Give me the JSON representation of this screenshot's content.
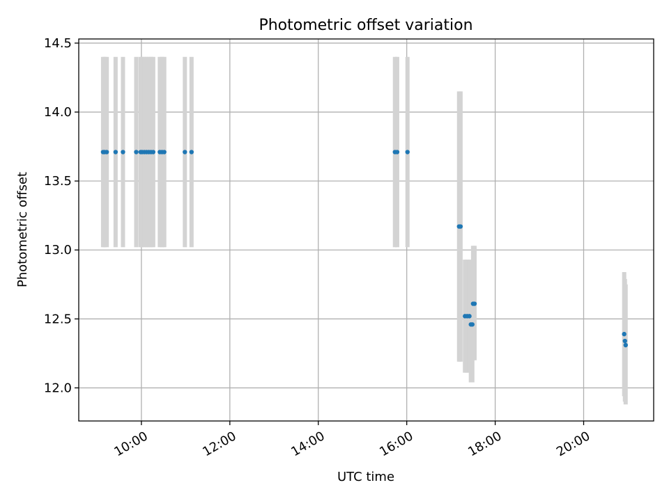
{
  "chart_data": {
    "type": "scatter",
    "title": "Photometric offset variation",
    "xlabel": "UTC time",
    "ylabel": "Photometric offset",
    "xlim": [
      "08:35",
      "21:35"
    ],
    "ylim": [
      11.76,
      14.53
    ],
    "x_ticks": [
      "10:00",
      "12:00",
      "14:00",
      "16:00",
      "18:00",
      "20:00"
    ],
    "y_ticks": [
      "12.0",
      "12.5",
      "13.0",
      "13.5",
      "14.0",
      "14.5"
    ],
    "grid": true,
    "colors": {
      "point": "#1f77b4",
      "errorbar": "#d3d3d3",
      "grid": "#b0b0b0"
    },
    "series": [
      {
        "points": [
          {
            "x": "09:08",
            "y": 13.71,
            "ylo": 13.02,
            "yhi": 14.4
          },
          {
            "x": "09:10",
            "y": 13.71,
            "ylo": 13.02,
            "yhi": 14.4
          },
          {
            "x": "09:13",
            "y": 13.71,
            "ylo": 13.02,
            "yhi": 14.4
          },
          {
            "x": "09:25",
            "y": 13.71,
            "ylo": 13.02,
            "yhi": 14.4
          },
          {
            "x": "09:35",
            "y": 13.71,
            "ylo": 13.02,
            "yhi": 14.4
          },
          {
            "x": "09:53",
            "y": 13.71,
            "ylo": 13.02,
            "yhi": 14.4
          },
          {
            "x": "09:59",
            "y": 13.71,
            "ylo": 13.02,
            "yhi": 14.4
          },
          {
            "x": "10:01",
            "y": 13.71,
            "ylo": 13.02,
            "yhi": 14.4
          },
          {
            "x": "10:04",
            "y": 13.71,
            "ylo": 13.02,
            "yhi": 14.4
          },
          {
            "x": "10:07",
            "y": 13.71,
            "ylo": 13.02,
            "yhi": 14.4
          },
          {
            "x": "10:10",
            "y": 13.71,
            "ylo": 13.02,
            "yhi": 14.4
          },
          {
            "x": "10:13",
            "y": 13.71,
            "ylo": 13.02,
            "yhi": 14.4
          },
          {
            "x": "10:16",
            "y": 13.71,
            "ylo": 13.02,
            "yhi": 14.4
          },
          {
            "x": "10:25",
            "y": 13.71,
            "ylo": 13.02,
            "yhi": 14.4
          },
          {
            "x": "10:28",
            "y": 13.71,
            "ylo": 13.02,
            "yhi": 14.4
          },
          {
            "x": "10:31",
            "y": 13.71,
            "ylo": 13.02,
            "yhi": 14.4
          },
          {
            "x": "10:59",
            "y": 13.71,
            "ylo": 13.02,
            "yhi": 14.4
          },
          {
            "x": "11:08",
            "y": 13.71,
            "ylo": 13.02,
            "yhi": 14.4
          },
          {
            "x": "15:44",
            "y": 13.71,
            "ylo": 13.02,
            "yhi": 14.4
          },
          {
            "x": "15:47",
            "y": 13.71,
            "ylo": 13.02,
            "yhi": 14.4
          },
          {
            "x": "16:01",
            "y": 13.71,
            "ylo": 13.02,
            "yhi": 14.4
          },
          {
            "x": "17:11",
            "y": 13.17,
            "ylo": 12.19,
            "yhi": 14.15
          },
          {
            "x": "17:13",
            "y": 13.17,
            "ylo": 12.19,
            "yhi": 14.15
          },
          {
            "x": "17:19",
            "y": 12.52,
            "ylo": 12.11,
            "yhi": 12.93
          },
          {
            "x": "17:22",
            "y": 12.52,
            "ylo": 12.11,
            "yhi": 12.93
          },
          {
            "x": "17:25",
            "y": 12.52,
            "ylo": 12.11,
            "yhi": 12.93
          },
          {
            "x": "17:27",
            "y": 12.46,
            "ylo": 12.04,
            "yhi": 12.88
          },
          {
            "x": "17:29",
            "y": 12.46,
            "ylo": 12.04,
            "yhi": 12.88
          },
          {
            "x": "17:30",
            "y": 12.61,
            "ylo": 12.2,
            "yhi": 13.03
          },
          {
            "x": "17:32",
            "y": 12.61,
            "ylo": 12.2,
            "yhi": 13.03
          },
          {
            "x": "20:55",
            "y": 12.39,
            "ylo": 11.94,
            "yhi": 12.84
          },
          {
            "x": "20:56",
            "y": 12.34,
            "ylo": 11.9,
            "yhi": 12.79
          },
          {
            "x": "20:57",
            "y": 12.31,
            "ylo": 11.88,
            "yhi": 12.75
          }
        ]
      }
    ]
  }
}
